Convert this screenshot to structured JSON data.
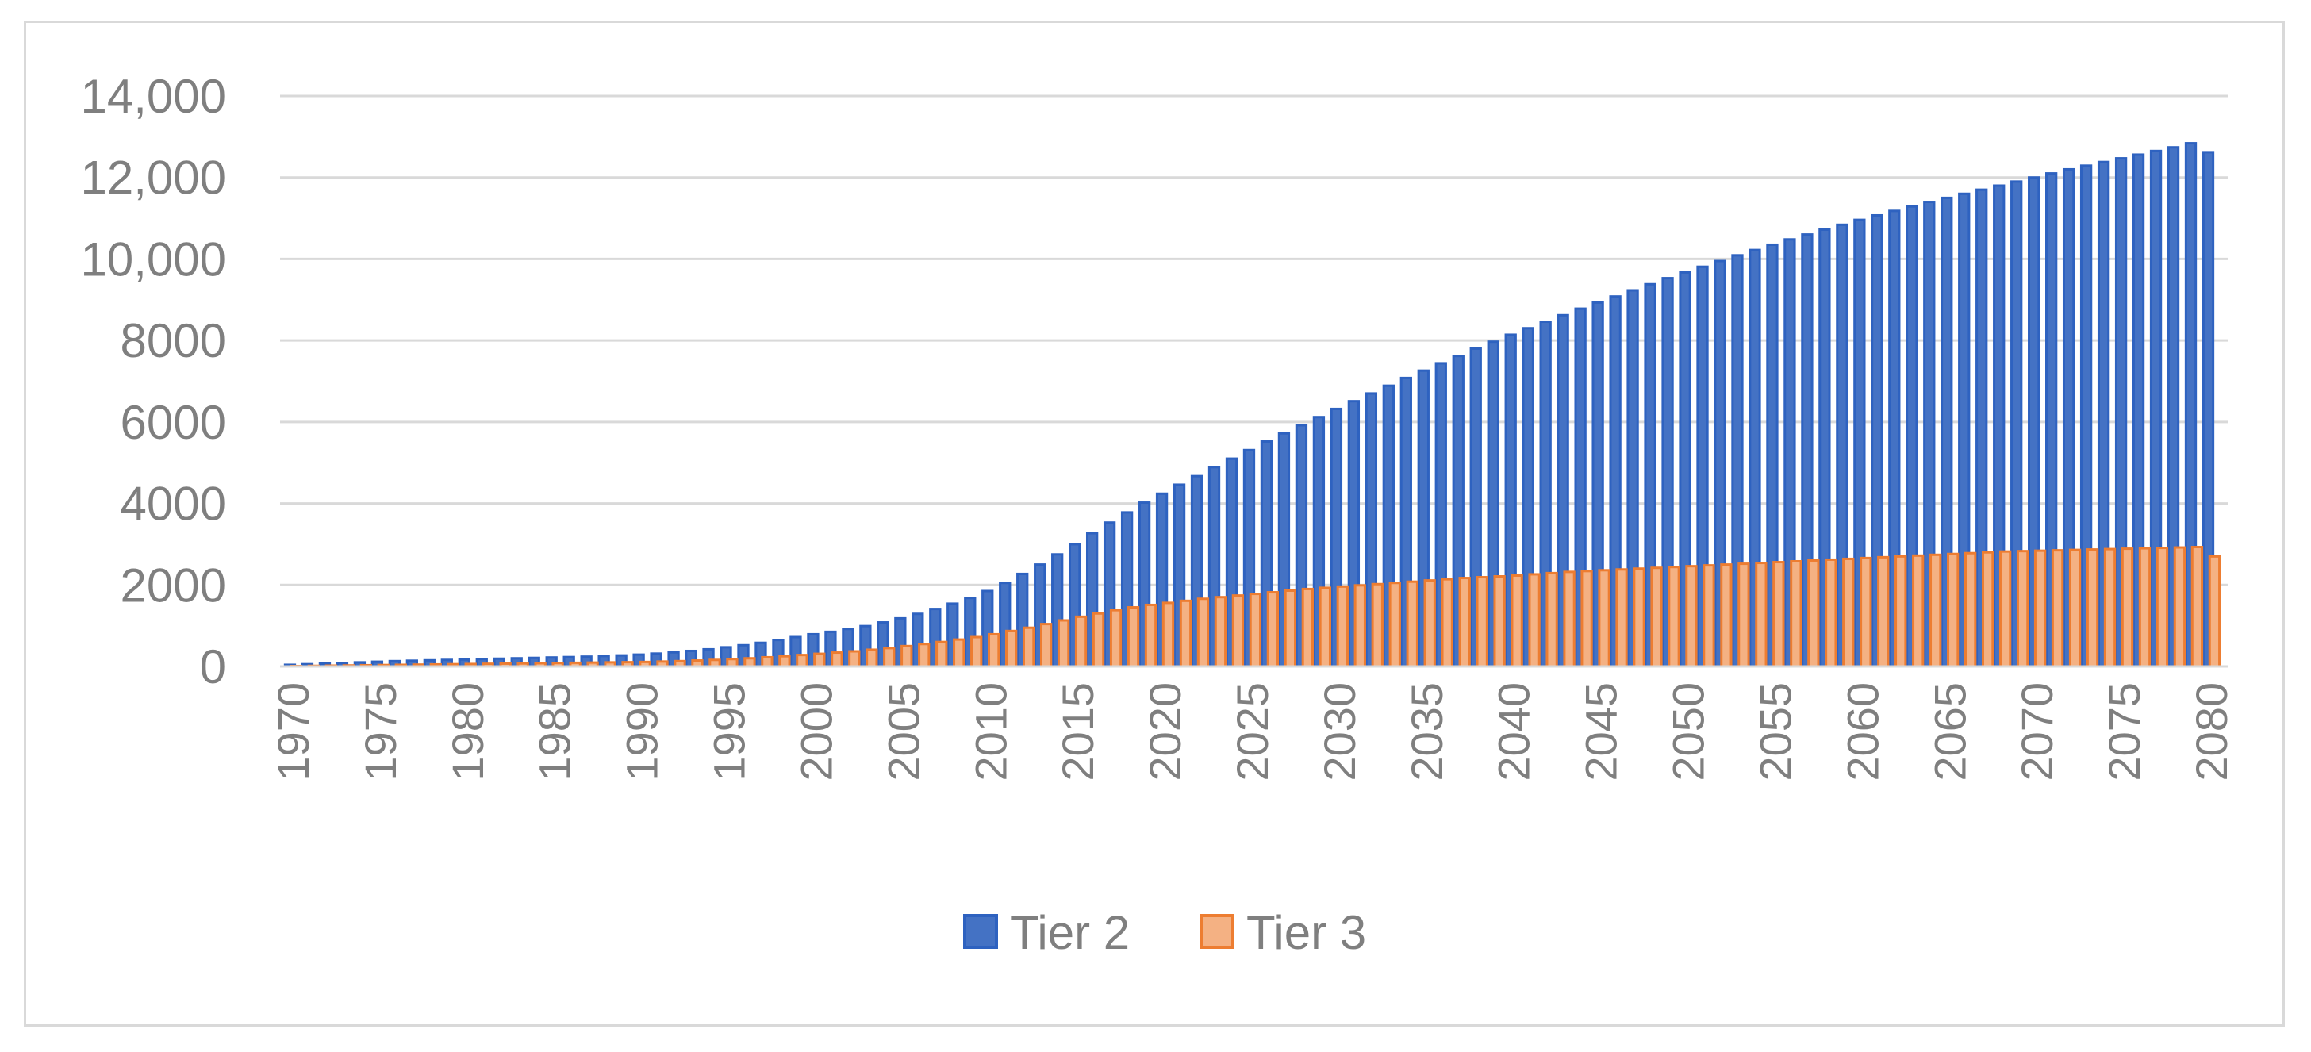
{
  "chart_data": {
    "type": "bar",
    "title": "",
    "xlabel": "",
    "ylabel": "",
    "ylim": [
      0,
      14000
    ],
    "grid": true,
    "legend_position": "bottom",
    "ytick_values": [
      0,
      2000,
      4000,
      6000,
      8000,
      10000,
      12000,
      14000
    ],
    "ytick_labels": [
      "0",
      "2000",
      "4000",
      "6000",
      "8000",
      "10,000",
      "12,000",
      "14,000"
    ],
    "xtick_labels": [
      "1970",
      "1975",
      "1980",
      "1985",
      "1990",
      "1995",
      "2000",
      "2005",
      "2010",
      "2015",
      "2020",
      "2025",
      "2030",
      "2035",
      "2040",
      "2045",
      "2050",
      "2055",
      "2060",
      "2065",
      "2070",
      "2075",
      "2080"
    ],
    "x_start": 1970,
    "x_end": 2080,
    "series": [
      {
        "name": "Tier 2",
        "color": "#4472c4",
        "edge_color": "#2e62c0",
        "values": [
          40,
          55,
          70,
          85,
          100,
          115,
          130,
          140,
          150,
          160,
          170,
          180,
          190,
          200,
          210,
          220,
          230,
          240,
          255,
          270,
          290,
          315,
          345,
          380,
          420,
          470,
          520,
          580,
          650,
          720,
          790,
          850,
          920,
          990,
          1080,
          1180,
          1290,
          1410,
          1540,
          1680,
          1850,
          2050,
          2270,
          2500,
          2750,
          3000,
          3270,
          3530,
          3780,
          4020,
          4240,
          4460,
          4670,
          4890,
          5100,
          5310,
          5520,
          5720,
          5920,
          6120,
          6320,
          6510,
          6700,
          6890,
          7080,
          7260,
          7440,
          7620,
          7800,
          7970,
          8140,
          8300,
          8460,
          8620,
          8780,
          8930,
          9080,
          9230,
          9380,
          9530,
          9670,
          9810,
          9950,
          10090,
          10220,
          10350,
          10480,
          10600,
          10720,
          10840,
          10960,
          11070,
          11180,
          11290,
          11400,
          11500,
          11600,
          11700,
          11800,
          11900,
          12000,
          12100,
          12200,
          12290,
          12380,
          12470,
          12560,
          12650,
          12740,
          12840,
          12620
        ]
      },
      {
        "name": "Tier 3",
        "color": "#f4b183",
        "edge_color": "#ed7d31",
        "values": [
          10,
          15,
          20,
          25,
          30,
          35,
          40,
          45,
          50,
          55,
          60,
          65,
          70,
          75,
          80,
          85,
          90,
          95,
          100,
          105,
          110,
          120,
          130,
          145,
          160,
          180,
          200,
          225,
          250,
          280,
          310,
          340,
          370,
          410,
          450,
          500,
          550,
          600,
          660,
          720,
          790,
          870,
          950,
          1040,
          1130,
          1220,
          1300,
          1380,
          1450,
          1510,
          1560,
          1610,
          1660,
          1700,
          1740,
          1780,
          1820,
          1860,
          1900,
          1930,
          1960,
          1990,
          2020,
          2050,
          2080,
          2110,
          2140,
          2170,
          2190,
          2210,
          2230,
          2260,
          2290,
          2320,
          2340,
          2360,
          2380,
          2400,
          2420,
          2440,
          2460,
          2480,
          2500,
          2520,
          2540,
          2560,
          2580,
          2600,
          2620,
          2640,
          2660,
          2680,
          2700,
          2720,
          2740,
          2760,
          2780,
          2800,
          2820,
          2830,
          2840,
          2850,
          2860,
          2870,
          2880,
          2890,
          2900,
          2910,
          2920,
          2930,
          2700
        ]
      }
    ]
  }
}
